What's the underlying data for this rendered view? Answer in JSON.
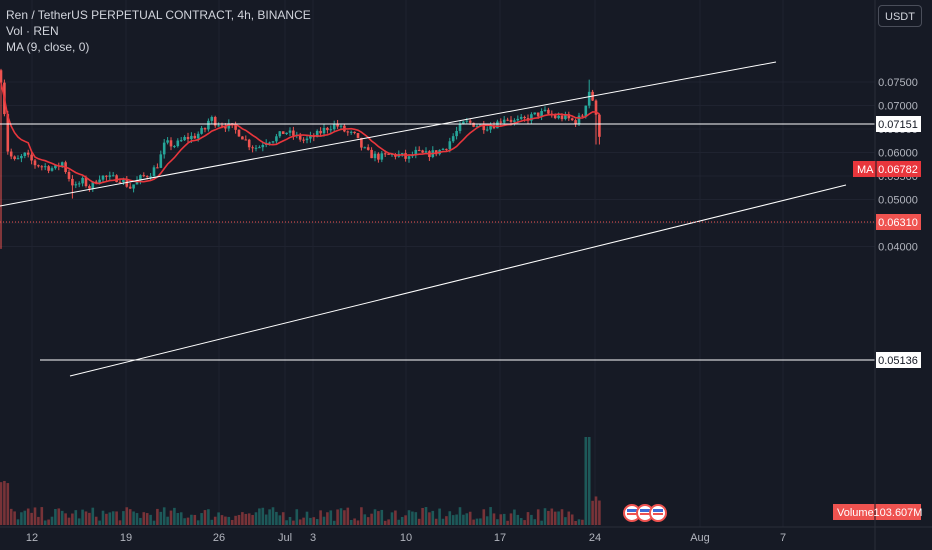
{
  "header": {
    "title": "Ren / TetherUS PERPETUAL CONTRACT, 4h, BINANCE",
    "indicator_vol": "Vol · REN",
    "indicator_ma": "MA (9, close, 0)",
    "currency": "USDT"
  },
  "colors": {
    "background": "#161a25",
    "up": "#26a69a",
    "down": "#ef5350",
    "ma_line": "#e8363c",
    "trend_lines": "#ffffff"
  },
  "chart_data": {
    "type": "candlestick",
    "y_ticks": [
      "0.07500",
      "0.07000",
      "0.06500",
      "0.06000",
      "0.05500",
      "0.05000",
      "0.04500",
      "0.04000"
    ],
    "x_ticks": [
      "12",
      "19",
      "26",
      "Jul",
      "3",
      "10",
      "17",
      "24",
      "Aug",
      "7"
    ],
    "ylim": [
      0.0385,
      0.0785
    ],
    "horizontal_levels": [
      {
        "label": "0.07151",
        "value": 0.07151
      },
      {
        "label": "0.05136",
        "value": 0.05136
      }
    ],
    "current_price": {
      "label": "0.06310",
      "value": 0.0631
    },
    "ma": {
      "name": "MA",
      "label": "0.06782",
      "value": 0.06782
    },
    "volume": {
      "name": "Volume",
      "label": "103.607M"
    },
    "price_path": [
      [
        0,
        0.0775
      ],
      [
        3,
        0.072
      ],
      [
        8,
        0.06
      ],
      [
        15,
        0.058
      ],
      [
        25,
        0.0595
      ],
      [
        35,
        0.0575
      ],
      [
        45,
        0.057
      ],
      [
        55,
        0.0565
      ],
      [
        62,
        0.058
      ],
      [
        68,
        0.055
      ],
      [
        75,
        0.0525
      ],
      [
        82,
        0.054
      ],
      [
        90,
        0.0525
      ],
      [
        100,
        0.055
      ],
      [
        110,
        0.0545
      ],
      [
        120,
        0.0545
      ],
      [
        130,
        0.0525
      ],
      [
        140,
        0.0545
      ],
      [
        150,
        0.0555
      ],
      [
        158,
        0.0575
      ],
      [
        165,
        0.062
      ],
      [
        175,
        0.0615
      ],
      [
        185,
        0.063
      ],
      [
        195,
        0.0635
      ],
      [
        205,
        0.065
      ],
      [
        210,
        0.0675
      ],
      [
        215,
        0.0665
      ],
      [
        222,
        0.066
      ],
      [
        230,
        0.0655
      ],
      [
        240,
        0.064
      ],
      [
        250,
        0.0615
      ],
      [
        258,
        0.061
      ],
      [
        265,
        0.0625
      ],
      [
        275,
        0.063
      ],
      [
        285,
        0.0645
      ],
      [
        295,
        0.0635
      ],
      [
        305,
        0.0625
      ],
      [
        315,
        0.0635
      ],
      [
        325,
        0.065
      ],
      [
        335,
        0.066
      ],
      [
        345,
        0.0645
      ],
      [
        355,
        0.0635
      ],
      [
        362,
        0.061
      ],
      [
        370,
        0.0595
      ],
      [
        380,
        0.059
      ],
      [
        390,
        0.0595
      ],
      [
        400,
        0.0595
      ],
      [
        408,
        0.0585
      ],
      [
        415,
        0.06
      ],
      [
        425,
        0.0595
      ],
      [
        435,
        0.06
      ],
      [
        445,
        0.061
      ],
      [
        455,
        0.064
      ],
      [
        465,
        0.0665
      ],
      [
        475,
        0.066
      ],
      [
        485,
        0.0655
      ],
      [
        495,
        0.066
      ],
      [
        505,
        0.0675
      ],
      [
        515,
        0.0665
      ],
      [
        525,
        0.067
      ],
      [
        535,
        0.068
      ],
      [
        545,
        0.0685
      ],
      [
        555,
        0.0675
      ],
      [
        565,
        0.0675
      ],
      [
        575,
        0.0665
      ],
      [
        583,
        0.068
      ],
      [
        588,
        0.0725
      ],
      [
        591,
        0.074
      ],
      [
        593,
        0.0705
      ],
      [
        596,
        0.0675
      ],
      [
        599,
        0.0645
      ],
      [
        600,
        0.0631
      ]
    ]
  }
}
